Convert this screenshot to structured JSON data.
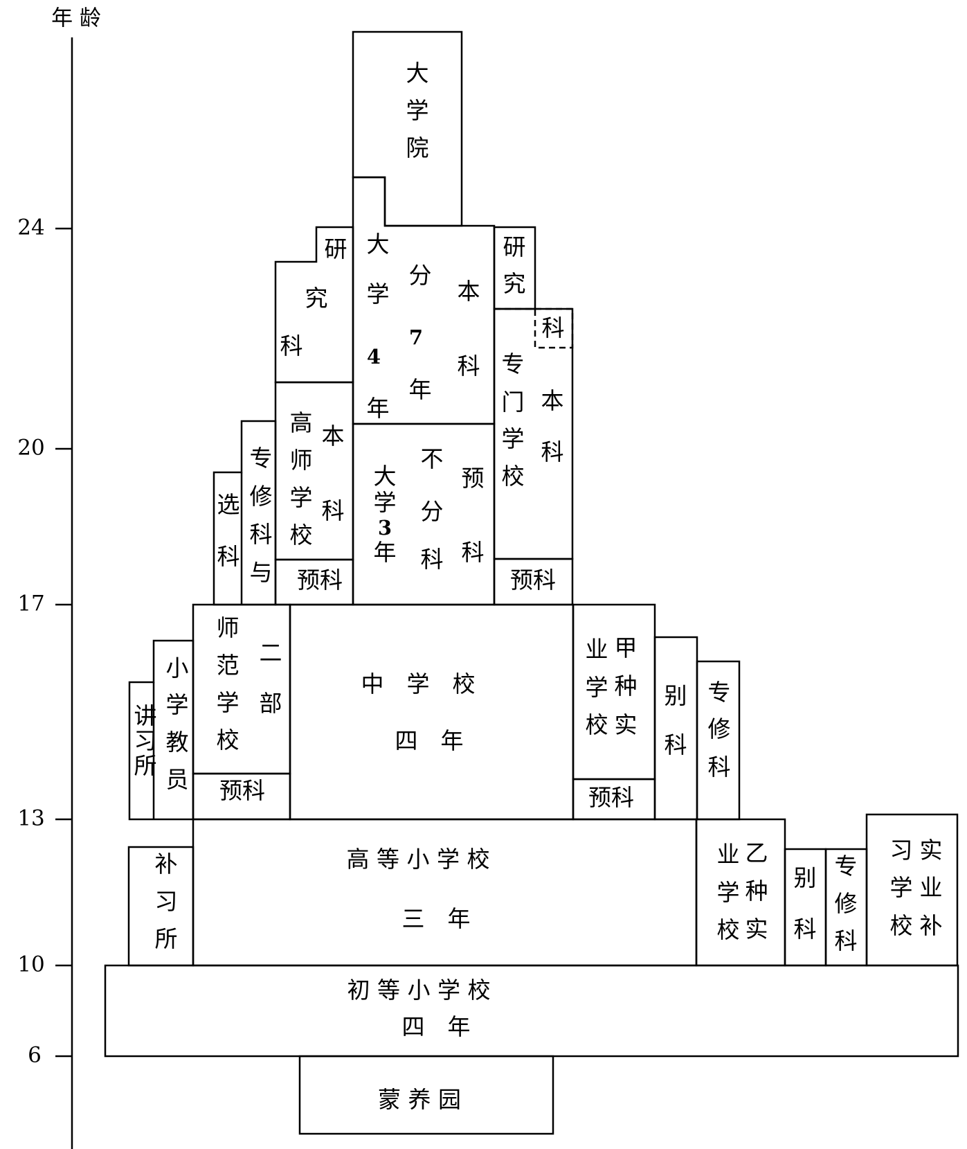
{
  "axis": {
    "title": "年 龄",
    "ticks": [
      "24",
      "20",
      "17",
      "13",
      "10",
      "6"
    ]
  },
  "labels": {
    "daxueyuan": [
      "大",
      "学",
      "院"
    ],
    "daxue4_left": [
      "大",
      "学",
      "4",
      "年"
    ],
    "fen7": [
      "分",
      "7",
      "年"
    ],
    "benke_center": [
      "本",
      "科"
    ],
    "yanjiuke_l1": "研",
    "yanjiuke_l2": "究",
    "yanjiuke_l3": "科",
    "yanjiu_r": [
      "研",
      "究"
    ],
    "ke_dashed": "科",
    "zhuanmen": [
      "专",
      "门",
      "学",
      "校"
    ],
    "benke_r": [
      "本",
      "科"
    ],
    "gaoshi": [
      "高",
      "师",
      "学",
      "校"
    ],
    "benke_gs": [
      "本",
      "科"
    ],
    "yuke": "预科",
    "daxue3": [
      "大",
      "学",
      "3",
      "年"
    ],
    "bufen": [
      "不",
      "分",
      "科"
    ],
    "yuke_v": [
      "预",
      "科"
    ],
    "zhuanxiu_top": [
      "专",
      "修",
      "科",
      "与"
    ],
    "xuanke": [
      "选",
      "科"
    ],
    "shifan": [
      "师",
      "范",
      "学",
      "校"
    ],
    "erbu": [
      "二",
      "部"
    ],
    "xiaoxue_col": [
      "小",
      "学",
      "教",
      "员"
    ],
    "jiangxi_col": [
      "讲",
      "习",
      "所"
    ],
    "zhongxue": "中　学　校",
    "sinian": "四　年",
    "jiazhong_c1": [
      "甲",
      "种",
      "实"
    ],
    "jiazhong_c2": [
      "业",
      "学",
      "校"
    ],
    "bieke": [
      "别",
      "科"
    ],
    "zhuanxiuke": [
      "专",
      "修",
      "科"
    ],
    "gaodeng": "高 等 小 学 校",
    "sannian": "三　年",
    "buxisuo": [
      "补",
      "习",
      "所"
    ],
    "yizhong_c1": [
      "乙",
      "种",
      "实"
    ],
    "yizhong_c2": [
      "业",
      "学",
      "校"
    ],
    "shiye_c1": [
      "实",
      "业",
      "补"
    ],
    "shiye_c2": [
      "习",
      "学",
      "校"
    ],
    "chudeng": "初 等 小 学 校",
    "sinian2": "四　年",
    "mengyang": "蒙 养 园"
  }
}
